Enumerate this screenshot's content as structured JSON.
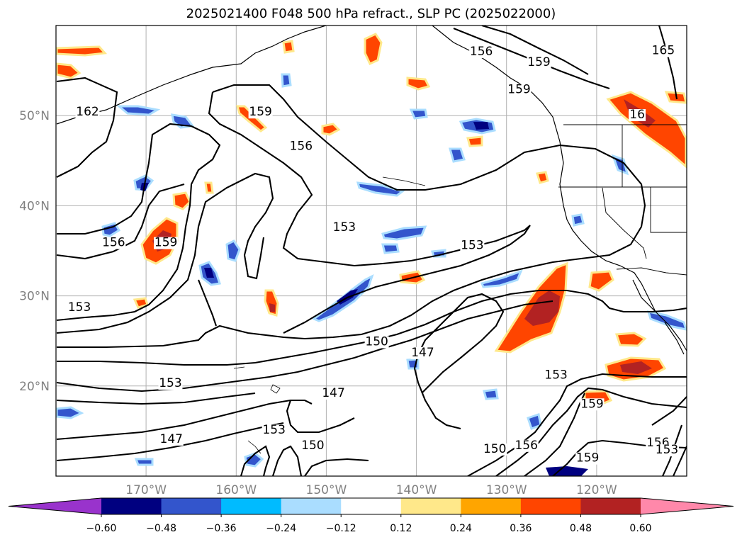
{
  "title": "2025021400 F048 500 hPa refract., SLP PC (2025022000)",
  "lat_labels": [
    {
      "text": "50°N",
      "lat": 50
    },
    {
      "text": "40°N",
      "lat": 40
    },
    {
      "text": "30°N",
      "lat": 30
    },
    {
      "text": "20°N",
      "lat": 20
    }
  ],
  "lon_labels": [
    {
      "text": "170°W",
      "lon": -170
    },
    {
      "text": "160°W",
      "lon": -160
    },
    {
      "text": "150°W",
      "lon": -150
    },
    {
      "text": "140°W",
      "lon": -140
    },
    {
      "text": "130°W",
      "lon": -130
    },
    {
      "text": "120°W",
      "lon": -120
    }
  ],
  "contour_labels": [
    {
      "text": "156",
      "lon": -132.8,
      "lat": 56.7
    },
    {
      "text": "159",
      "lon": -126.4,
      "lat": 55.5
    },
    {
      "text": "159",
      "lon": -128.6,
      "lat": 52.5
    },
    {
      "text": "165",
      "lon": -112.6,
      "lat": 56.8
    },
    {
      "text": "16",
      "lon": -115.5,
      "lat": 49.7
    },
    {
      "text": "162",
      "lon": -176.5,
      "lat": 50.0
    },
    {
      "text": "159",
      "lon": -157.3,
      "lat": 50.0
    },
    {
      "text": "156",
      "lon": -152.8,
      "lat": 46.2
    },
    {
      "text": "153",
      "lon": -148.0,
      "lat": 37.2
    },
    {
      "text": "153",
      "lon": -133.8,
      "lat": 35.2
    },
    {
      "text": "156",
      "lon": -173.6,
      "lat": 35.5
    },
    {
      "text": "159",
      "lon": -167.8,
      "lat": 35.5
    },
    {
      "text": "153",
      "lon": -177.4,
      "lat": 28.3
    },
    {
      "text": "150",
      "lon": -144.4,
      "lat": 24.5
    },
    {
      "text": "147",
      "lon": -139.3,
      "lat": 23.3
    },
    {
      "text": "153",
      "lon": -167.3,
      "lat": 19.9
    },
    {
      "text": "147",
      "lon": -149.2,
      "lat": 18.8
    },
    {
      "text": "147",
      "lon": -167.2,
      "lat": 13.7
    },
    {
      "text": "153",
      "lon": -155.8,
      "lat": 14.7
    },
    {
      "text": "150",
      "lon": -151.5,
      "lat": 13.0
    },
    {
      "text": "150",
      "lon": -131.3,
      "lat": 12.6
    },
    {
      "text": "156",
      "lon": -127.8,
      "lat": 13.0
    },
    {
      "text": "153",
      "lon": -124.5,
      "lat": 20.8
    },
    {
      "text": "159",
      "lon": -120.5,
      "lat": 17.6
    },
    {
      "text": "159",
      "lon": -121.0,
      "lat": 11.6
    },
    {
      "text": "156",
      "lon": -113.2,
      "lat": 13.3
    },
    {
      "text": "153",
      "lon": -112.2,
      "lat": 12.5
    }
  ],
  "colorbar": {
    "colors": [
      "#9933cc",
      "#000080",
      "#3355cc",
      "#00bbff",
      "#aaddff",
      "#ffffff",
      "#ffe88a",
      "#ffa500",
      "#ff4500",
      "#b22222",
      "#ff88aa"
    ],
    "ticks": [
      "−0.60",
      "−0.48",
      "−0.36",
      "−0.24",
      "−0.12",
      "0.12",
      "0.24",
      "0.36",
      "0.48",
      "0.60"
    ]
  },
  "map_extent": {
    "lon": [
      -180,
      -110
    ],
    "lat": [
      10,
      60
    ]
  }
}
